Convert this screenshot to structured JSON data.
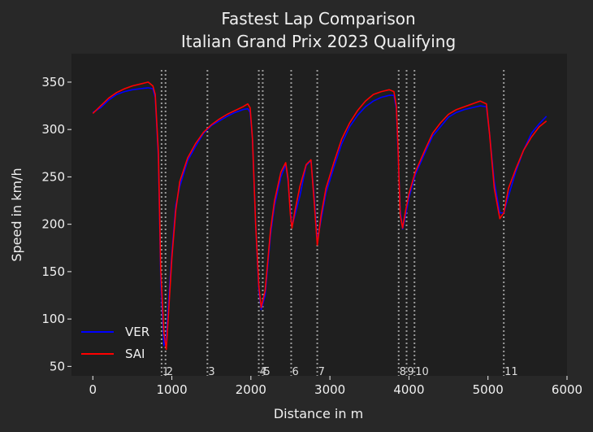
{
  "chart_data": {
    "type": "line",
    "title": "Fastest Lap Comparison",
    "subtitle": "Italian Grand Prix 2023 Qualifying",
    "xlabel": "Distance in m",
    "ylabel": "Speed in km/h",
    "xlim": [
      -270,
      6000
    ],
    "ylim": [
      40,
      380
    ],
    "xticks": [
      0,
      1000,
      2000,
      3000,
      4000,
      5000,
      6000
    ],
    "yticks": [
      50,
      100,
      150,
      200,
      250,
      300,
      350
    ],
    "grid": false,
    "legend": "lower-left",
    "colors": {
      "background": "#282828",
      "plot_area": "#1f1f1f",
      "corner_lines": "#9a9a9a"
    },
    "corners": [
      {
        "label": "1",
        "x": 870
      },
      {
        "label": "2",
        "x": 920
      },
      {
        "label": "3",
        "x": 1450
      },
      {
        "label": "4",
        "x": 2100
      },
      {
        "label": "5",
        "x": 2150
      },
      {
        "label": "6",
        "x": 2510
      },
      {
        "label": "7",
        "x": 2840
      },
      {
        "label": "8",
        "x": 3870
      },
      {
        "label": "9",
        "x": 3970
      },
      {
        "label": "10",
        "x": 4070
      },
      {
        "label": "11",
        "x": 5200
      }
    ],
    "series": [
      {
        "name": "VER",
        "color": "#0000ff",
        "points": [
          [
            0,
            318
          ],
          [
            100,
            323
          ],
          [
            200,
            331
          ],
          [
            300,
            337
          ],
          [
            400,
            340
          ],
          [
            500,
            342
          ],
          [
            600,
            343
          ],
          [
            700,
            344
          ],
          [
            760,
            343
          ],
          [
            790,
            334
          ],
          [
            830,
            270
          ],
          [
            860,
            140
          ],
          [
            900,
            72
          ],
          [
            930,
            80
          ],
          [
            960,
            120
          ],
          [
            1000,
            170
          ],
          [
            1050,
            220
          ],
          [
            1100,
            240
          ],
          [
            1200,
            267
          ],
          [
            1300,
            282
          ],
          [
            1400,
            296
          ],
          [
            1500,
            304
          ],
          [
            1600,
            309
          ],
          [
            1700,
            314
          ],
          [
            1800,
            318
          ],
          [
            1900,
            321
          ],
          [
            1960,
            322
          ],
          [
            1990,
            318
          ],
          [
            2020,
            290
          ],
          [
            2060,
            200
          ],
          [
            2100,
            130
          ],
          [
            2130,
            110
          ],
          [
            2180,
            125
          ],
          [
            2250,
            190
          ],
          [
            2300,
            220
          ],
          [
            2380,
            250
          ],
          [
            2440,
            263
          ],
          [
            2470,
            245
          ],
          [
            2500,
            215
          ],
          [
            2520,
            198
          ],
          [
            2560,
            210
          ],
          [
            2620,
            230
          ],
          [
            2700,
            262
          ],
          [
            2760,
            267
          ],
          [
            2800,
            230
          ],
          [
            2840,
            183
          ],
          [
            2890,
            205
          ],
          [
            2950,
            233
          ],
          [
            3050,
            260
          ],
          [
            3150,
            285
          ],
          [
            3250,
            303
          ],
          [
            3350,
            315
          ],
          [
            3450,
            324
          ],
          [
            3550,
            330
          ],
          [
            3650,
            334
          ],
          [
            3750,
            336
          ],
          [
            3810,
            336
          ],
          [
            3840,
            322
          ],
          [
            3860,
            280
          ],
          [
            3890,
            215
          ],
          [
            3920,
            195
          ],
          [
            3960,
            210
          ],
          [
            4000,
            228
          ],
          [
            4080,
            252
          ],
          [
            4200,
            275
          ],
          [
            4300,
            293
          ],
          [
            4400,
            303
          ],
          [
            4500,
            313
          ],
          [
            4600,
            318
          ],
          [
            4700,
            321
          ],
          [
            4800,
            323
          ],
          [
            4900,
            325
          ],
          [
            4980,
            324
          ],
          [
            5020,
            295
          ],
          [
            5080,
            245
          ],
          [
            5150,
            212
          ],
          [
            5200,
            212
          ],
          [
            5260,
            230
          ],
          [
            5350,
            255
          ],
          [
            5450,
            278
          ],
          [
            5550,
            296
          ],
          [
            5650,
            306
          ],
          [
            5740,
            314
          ]
        ]
      },
      {
        "name": "SAI",
        "color": "#ff0000",
        "points": [
          [
            0,
            317
          ],
          [
            100,
            325
          ],
          [
            200,
            333
          ],
          [
            300,
            339
          ],
          [
            400,
            343
          ],
          [
            500,
            346
          ],
          [
            600,
            348
          ],
          [
            700,
            350
          ],
          [
            760,
            346
          ],
          [
            790,
            337
          ],
          [
            830,
            275
          ],
          [
            860,
            150
          ],
          [
            900,
            85
          ],
          [
            930,
            68
          ],
          [
            960,
            110
          ],
          [
            1000,
            165
          ],
          [
            1050,
            215
          ],
          [
            1100,
            245
          ],
          [
            1200,
            270
          ],
          [
            1300,
            285
          ],
          [
            1400,
            297
          ],
          [
            1500,
            305
          ],
          [
            1600,
            311
          ],
          [
            1700,
            316
          ],
          [
            1800,
            320
          ],
          [
            1900,
            324
          ],
          [
            1960,
            327
          ],
          [
            1990,
            323
          ],
          [
            2020,
            290
          ],
          [
            2060,
            200
          ],
          [
            2100,
            135
          ],
          [
            2130,
            112
          ],
          [
            2180,
            130
          ],
          [
            2250,
            195
          ],
          [
            2300,
            225
          ],
          [
            2380,
            255
          ],
          [
            2440,
            265
          ],
          [
            2470,
            248
          ],
          [
            2500,
            210
          ],
          [
            2520,
            196
          ],
          [
            2560,
            215
          ],
          [
            2620,
            240
          ],
          [
            2700,
            263
          ],
          [
            2760,
            268
          ],
          [
            2800,
            225
          ],
          [
            2840,
            178
          ],
          [
            2890,
            210
          ],
          [
            2950,
            238
          ],
          [
            3050,
            265
          ],
          [
            3150,
            290
          ],
          [
            3250,
            307
          ],
          [
            3350,
            320
          ],
          [
            3450,
            330
          ],
          [
            3550,
            337
          ],
          [
            3650,
            340
          ],
          [
            3750,
            342
          ],
          [
            3810,
            340
          ],
          [
            3840,
            325
          ],
          [
            3860,
            285
          ],
          [
            3890,
            210
          ],
          [
            3920,
            196
          ],
          [
            3960,
            215
          ],
          [
            4000,
            232
          ],
          [
            4080,
            255
          ],
          [
            4200,
            278
          ],
          [
            4300,
            296
          ],
          [
            4400,
            307
          ],
          [
            4500,
            316
          ],
          [
            4600,
            321
          ],
          [
            4700,
            324
          ],
          [
            4800,
            327
          ],
          [
            4900,
            330
          ],
          [
            4980,
            327
          ],
          [
            5020,
            295
          ],
          [
            5080,
            238
          ],
          [
            5150,
            206
          ],
          [
            5200,
            212
          ],
          [
            5260,
            238
          ],
          [
            5350,
            258
          ],
          [
            5450,
            278
          ],
          [
            5550,
            292
          ],
          [
            5650,
            303
          ],
          [
            5740,
            309
          ]
        ]
      }
    ]
  }
}
